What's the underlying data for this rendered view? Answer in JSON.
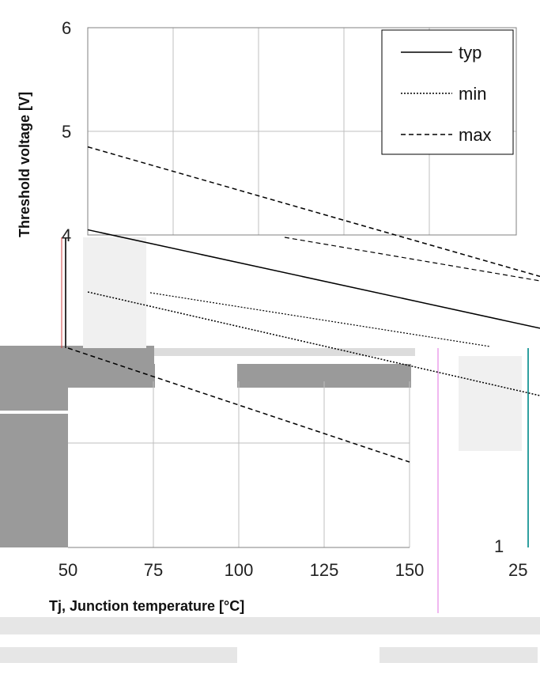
{
  "chart_data": {
    "type": "line",
    "title": "",
    "xlabel": "Tj, Junction temperature [°C]",
    "ylabel": "Threshold voltage [V]",
    "xlim": [
      25,
      150
    ],
    "ylim": [
      1,
      6
    ],
    "x_ticks": [
      50,
      75,
      100,
      125,
      150
    ],
    "x_tick_labels": [
      "50",
      "75",
      "100",
      "125",
      "150"
    ],
    "extra_x_tick_label": "25",
    "y_ticks": [
      6,
      5,
      4
    ],
    "y_tick_labels": [
      "6",
      "5",
      "4"
    ],
    "bottom_y_tick_label": "1",
    "grid": true,
    "legend_position": "top-right",
    "series": [
      {
        "name": "typ",
        "style": "solid",
        "x": [
          25,
          150
        ],
        "y": [
          4.05,
          3.1
        ]
      },
      {
        "name": "min",
        "style": "dotted",
        "x": [
          25,
          150
        ],
        "y": [
          3.45,
          2.45
        ]
      },
      {
        "name": "max",
        "style": "dashed",
        "x": [
          25,
          150
        ],
        "y": [
          4.85,
          3.6
        ]
      }
    ]
  }
}
